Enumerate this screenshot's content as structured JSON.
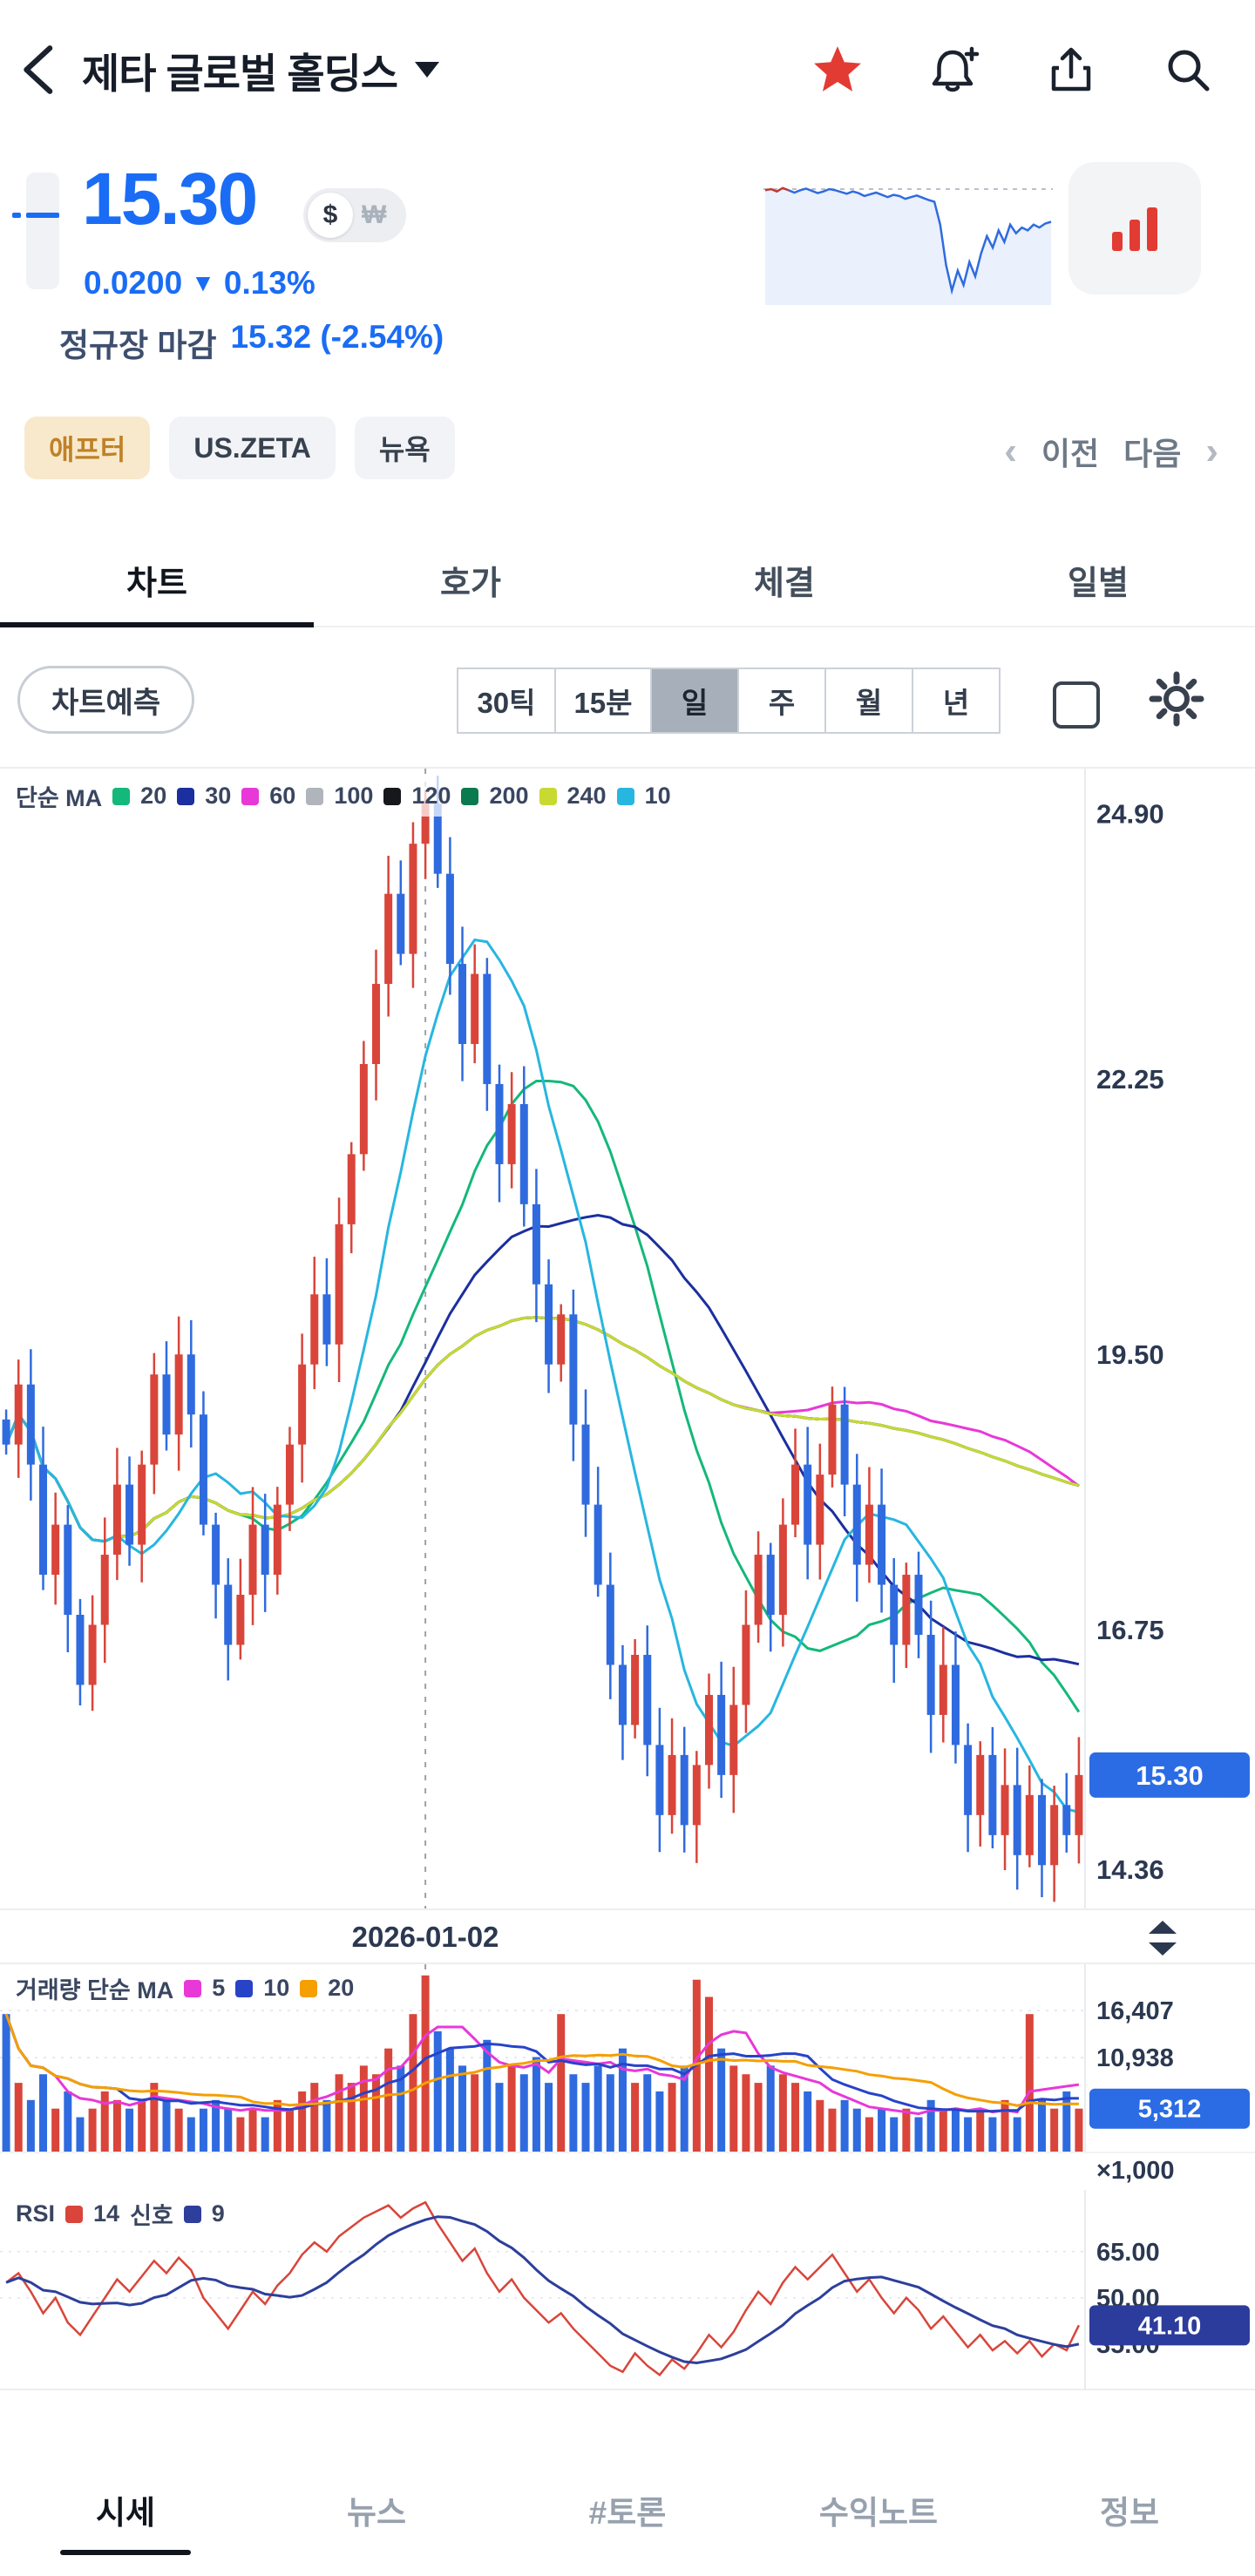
{
  "header": {
    "title": "제타 글로벌 홀딩스"
  },
  "price": {
    "value": "15.30",
    "currency_selected": "$",
    "currency_alt": "₩",
    "change_value": "0.0200",
    "change_direction": "▼",
    "change_pct": "0.13%",
    "session_label": "정규장 마감",
    "session_value": "15.32 (-2.54%)"
  },
  "badges": [
    {
      "label": "애프터",
      "style": "after"
    },
    {
      "label": "US.ZETA",
      "style": "gray"
    },
    {
      "label": "뉴욕",
      "style": "gray"
    }
  ],
  "pager": {
    "prev_label": "이전",
    "next_label": "다음"
  },
  "tabs": {
    "items": [
      "차트",
      "호가",
      "체결",
      "일별"
    ],
    "active_index": 0
  },
  "controls": {
    "predict_label": "차트예측",
    "intervals": [
      "30틱",
      "15분",
      "일",
      "주",
      "월",
      "년"
    ],
    "selected_interval": "일"
  },
  "chart_data": {
    "type": "candlestick",
    "y_axis_labels": [
      "24.90",
      "22.25",
      "19.50",
      "16.75",
      "14.36"
    ],
    "current_price_label": "15.30",
    "price_domain": [
      13.95,
      25.35
    ],
    "marker_date": "2026-01-02",
    "marker_index": 34,
    "ma_legend": {
      "title": "단순 MA",
      "items": [
        {
          "period": "20",
          "color": "#14b87a"
        },
        {
          "period": "30",
          "color": "#1b2f9e"
        },
        {
          "period": "60",
          "color": "#e838d8"
        },
        {
          "period": "100",
          "color": "#b0b4bb"
        },
        {
          "period": "120",
          "color": "#17181c"
        },
        {
          "period": "200",
          "color": "#0c7a4f"
        },
        {
          "period": "240",
          "color": "#c8d932"
        },
        {
          "period": "10",
          "color": "#27b6e0"
        }
      ]
    },
    "closes": [
      18.6,
      19.2,
      18.4,
      17.3,
      17.8,
      16.9,
      16.2,
      16.8,
      17.5,
      18.2,
      17.6,
      18.4,
      19.3,
      18.7,
      19.5,
      18.9,
      17.8,
      17.2,
      16.6,
      17.1,
      17.8,
      17.3,
      18.0,
      18.6,
      19.4,
      20.1,
      19.6,
      20.8,
      21.5,
      22.4,
      23.2,
      24.1,
      23.5,
      24.6,
      25.0,
      24.3,
      23.4,
      22.6,
      23.3,
      22.2,
      21.4,
      22.0,
      21.0,
      20.2,
      19.4,
      19.9,
      18.8,
      18.0,
      17.2,
      16.4,
      15.8,
      16.5,
      15.6,
      14.9,
      15.5,
      14.8,
      15.4,
      16.1,
      15.3,
      16.0,
      16.8,
      17.5,
      16.9,
      17.8,
      18.4,
      17.6,
      18.3,
      19.0,
      18.2,
      17.4,
      18.0,
      17.2,
      16.6,
      17.3,
      16.7,
      15.9,
      16.4,
      15.6,
      14.9,
      15.5,
      14.7,
      15.2,
      14.5,
      15.1,
      14.4,
      15.0,
      14.7,
      15.3
    ],
    "volumes_k": [
      16,
      8,
      6,
      9,
      5,
      7,
      4,
      5,
      7,
      6,
      5,
      6,
      8,
      6,
      5,
      4,
      5,
      6,
      5,
      4,
      5,
      4,
      6,
      5,
      7,
      8,
      6,
      9,
      8,
      10,
      9,
      12,
      10,
      16,
      20.5,
      14,
      12,
      10,
      9,
      13,
      8,
      10,
      9,
      11,
      8,
      16,
      9,
      8,
      10,
      9,
      12,
      8,
      9,
      7,
      8,
      10,
      20,
      18,
      12,
      10,
      9,
      8,
      10,
      9,
      8,
      7,
      6,
      5,
      6,
      5,
      4,
      5,
      4,
      5,
      4,
      6,
      5,
      5,
      4,
      5,
      4,
      6,
      4,
      16,
      6,
      5,
      7,
      5
    ],
    "volume_axis": {
      "gridline_labels": [
        "16,407",
        "10,938"
      ],
      "current_label": "5,312",
      "unit_label": "×1,000",
      "max_k": 21.8
    },
    "volume_legend": {
      "title": "거래량 단순 MA",
      "items": [
        {
          "period": "5",
          "color": "#e838d8"
        },
        {
          "period": "10",
          "color": "#2743c8"
        },
        {
          "period": "20",
          "color": "#f59f00"
        }
      ]
    },
    "rsi": [
      55,
      58,
      52,
      45,
      50,
      42,
      38,
      44,
      50,
      56,
      52,
      57,
      62,
      58,
      63,
      59,
      50,
      45,
      40,
      46,
      52,
      48,
      54,
      58,
      64,
      68,
      65,
      70,
      73,
      76,
      78,
      80,
      76,
      79,
      81,
      74,
      68,
      62,
      66,
      58,
      52,
      56,
      50,
      46,
      42,
      45,
      40,
      36,
      32,
      28,
      26,
      32,
      28,
      25,
      30,
      27,
      32,
      38,
      34,
      39,
      46,
      52,
      48,
      55,
      60,
      56,
      60,
      64,
      58,
      52,
      56,
      50,
      45,
      50,
      46,
      40,
      44,
      39,
      34,
      38,
      33,
      36,
      32,
      36,
      31,
      35,
      33,
      41.1
    ],
    "rsi_axis": {
      "gridline_labels": [
        "65.00",
        "50.00"
      ],
      "current_label": "41.10",
      "extra_label": "35.00",
      "domain": [
        20,
        85
      ]
    },
    "rsi_legend": {
      "title": "RSI",
      "items": [
        {
          "label": "14",
          "color": "#d9453a"
        },
        {
          "label": "신호",
          "color": ""
        },
        {
          "label": "9",
          "color": "#2d3f9b"
        }
      ]
    },
    "sparkline": {
      "values": [
        15.7,
        15.72,
        15.68,
        15.74,
        15.7,
        15.66,
        15.7,
        15.73,
        15.69,
        15.65,
        15.68,
        15.72,
        15.7,
        15.67,
        15.64,
        15.68,
        15.65,
        15.6,
        15.63,
        15.66,
        15.62,
        15.58,
        15.62,
        15.6,
        15.55,
        15.58,
        15.61,
        15.57,
        15.53,
        15.5,
        15.1,
        14.4,
        13.95,
        14.3,
        14.05,
        14.45,
        14.2,
        14.6,
        14.9,
        14.7,
        15.0,
        14.8,
        15.1,
        14.95,
        15.05,
        15.0,
        15.1,
        15.05,
        15.12,
        15.15
      ],
      "baseline": 15.72,
      "red_until": 4
    },
    "colors": {
      "up": "#d9453a",
      "down": "#2f6bdf",
      "price_tag_bg": "#2b6ce5",
      "volume_tag_bg": "#2b6ce5",
      "rsi_tag_bg": "#2c3c9c",
      "marker_line": "#9aa1ab"
    }
  },
  "bottom_nav": {
    "items": [
      "시세",
      "뉴스",
      "#토론",
      "수익노트",
      "정보"
    ],
    "active_index": 0
  }
}
